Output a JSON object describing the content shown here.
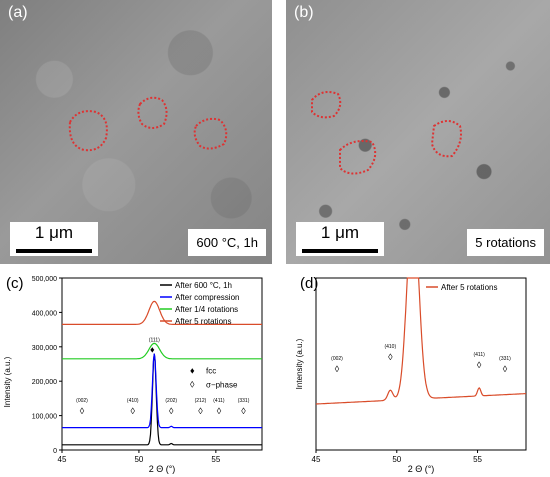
{
  "panel_a": {
    "label": "(a)",
    "scale_bar": "1 μm",
    "condition": "600 °C, 1h"
  },
  "panel_b": {
    "label": "(b)",
    "scale_bar": "1 μm",
    "condition": "5 rotations"
  },
  "chart_data": [
    {
      "panel": "(c)",
      "type": "line",
      "xlabel": "2 Θ (°)",
      "ylabel": "Intensity (a.u.)",
      "xlim": [
        45,
        58
      ],
      "ylim": [
        0,
        500000
      ],
      "yticks": [
        "0",
        "100,000",
        "200,000",
        "300,000",
        "400,000",
        "500,000"
      ],
      "xticks": [
        "45",
        "50",
        "55"
      ],
      "grid": false,
      "legend_placement": "top-right",
      "series": [
        {
          "name": "After 600 °C, 1h",
          "color": "#000000",
          "baseline": 15000,
          "peak": 280000
        },
        {
          "name": "After compression",
          "color": "#0000ff",
          "baseline": 65000,
          "peak": 280000
        },
        {
          "name": "After 1/4 rotations",
          "color": "#22cc22",
          "baseline": 265000,
          "peak": 310000
        },
        {
          "name": "After 5 rotations",
          "color": "#d94c2a",
          "baseline": 365000,
          "peak": 432000
        }
      ],
      "peak_position": 51.0,
      "annotations": [
        {
          "text": "(002)",
          "x": 46.3
        },
        {
          "text": "(410)",
          "x": 49.6
        },
        {
          "text": "(111)",
          "x": 51.0
        },
        {
          "text": "(202)",
          "x": 52.1
        },
        {
          "text": "(212)",
          "x": 54.0
        },
        {
          "text": "(411)",
          "x": 55.2
        },
        {
          "text": "(331)",
          "x": 56.8
        }
      ],
      "phase_legend": [
        {
          "symbol": "♦",
          "text": "fcc"
        },
        {
          "symbol": "◊",
          "text": "σ−phase"
        }
      ]
    },
    {
      "panel": "(d)",
      "type": "line",
      "xlabel": "2 Θ (°)",
      "ylabel": "Intensity (a.u.)",
      "xlim": [
        45,
        58
      ],
      "xticks": [
        "45",
        "50",
        "55"
      ],
      "grid": false,
      "legend_placement": "top-right",
      "series": [
        {
          "name": "After 5 rotations",
          "color": "#d94c2a"
        }
      ],
      "annotations": [
        {
          "text": "(002)",
          "x": 46.3
        },
        {
          "text": "(410)",
          "x": 49.6
        },
        {
          "text": "(411)",
          "x": 55.1
        },
        {
          "text": "(331)",
          "x": 56.7
        }
      ]
    }
  ]
}
